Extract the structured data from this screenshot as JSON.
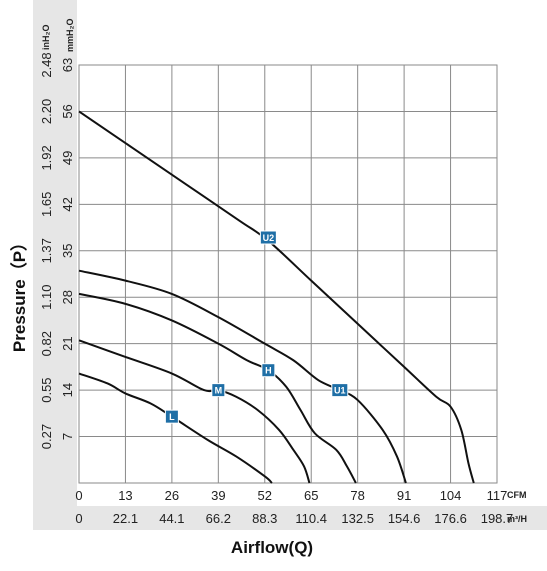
{
  "chart_data": {
    "type": "line",
    "xlabel": "Airflow(Q)",
    "ylabel": "Pressure（P）",
    "x_unit_primary": "CFM",
    "x_unit_secondary": "m³/H",
    "y_unit_primary": "mmH₂O",
    "y_unit_secondary": "inH₂O",
    "xlim": [
      0,
      117
    ],
    "ylim": [
      0,
      63
    ],
    "x_ticks_cfm": [
      "0",
      "13",
      "26",
      "39",
      "52",
      "65",
      "78",
      "91",
      "104",
      "117"
    ],
    "x_ticks_m3h": [
      "0",
      "22.1",
      "44.1",
      "66.2",
      "88.3",
      "110.4",
      "132.5",
      "154.6",
      "176.6",
      "198.7"
    ],
    "y_ticks_mmh2o": [
      "7",
      "14",
      "21",
      "28",
      "35",
      "42",
      "49",
      "56",
      "63"
    ],
    "y_ticks_inh2o": [
      "0.27",
      "0.55",
      "0.82",
      "1.10",
      "1.37",
      "1.65",
      "1.92",
      "2.20",
      "2.48"
    ],
    "grid": true,
    "series": [
      {
        "name": "U2",
        "label_at": [
          53,
          37
        ],
        "x": [
          0,
          15,
          30,
          45,
          53,
          65,
          78,
          91,
          100,
          104,
          107,
          109,
          110.5
        ],
        "y": [
          56,
          50.5,
          45,
          39.5,
          36.5,
          30.5,
          24,
          17.5,
          13,
          11.5,
          8,
          3,
          0
        ]
      },
      {
        "name": "U1",
        "label_at": [
          73,
          14
        ],
        "x": [
          0,
          13,
          26,
          39,
          52,
          60,
          67,
          73,
          78,
          85,
          89,
          91.5
        ],
        "y": [
          32,
          30.5,
          28.5,
          25,
          21,
          18.5,
          15.5,
          14,
          12.5,
          8,
          4,
          0
        ]
      },
      {
        "name": "H",
        "label_at": [
          53,
          17
        ],
        "x": [
          0,
          13,
          26,
          39,
          47,
          53,
          58,
          62,
          66,
          72,
          75,
          77.5
        ],
        "y": [
          28.5,
          27,
          24.5,
          21,
          18.5,
          17,
          14.5,
          11,
          7.5,
          5,
          2.5,
          0
        ]
      },
      {
        "name": "M",
        "label_at": [
          39,
          14
        ],
        "x": [
          0,
          13,
          26,
          35,
          39,
          44,
          50,
          56,
          60,
          63,
          64.5
        ],
        "y": [
          21.5,
          19,
          16.5,
          14,
          14,
          13,
          11,
          8,
          5,
          2.5,
          0
        ]
      },
      {
        "name": "L",
        "label_at": [
          26,
          10
        ],
        "x": [
          0,
          8,
          13,
          20,
          26,
          36,
          44,
          52,
          54
        ],
        "y": [
          16.5,
          15,
          13.5,
          12,
          10,
          6.5,
          4,
          1,
          0
        ]
      }
    ]
  },
  "colors": {
    "label_box": "#1f6fa6",
    "axis_band": "#e6e6e6",
    "curve": "#111111"
  }
}
